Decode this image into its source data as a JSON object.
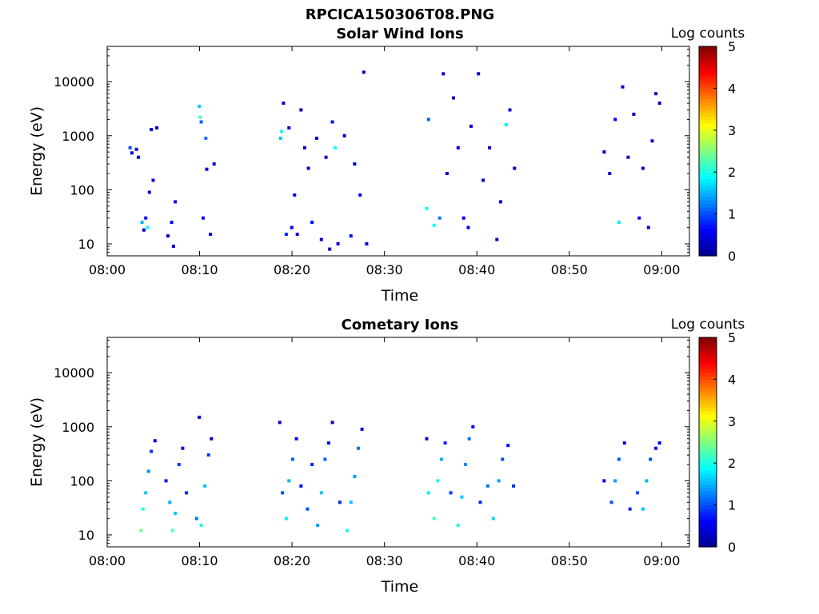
{
  "figure_title": "RPCICA150306T08.PNG",
  "colors": {
    "colormap": [
      "#00008f",
      "#0000ff",
      "#0080ff",
      "#00ffff",
      "#80ff80",
      "#ffff00",
      "#ff8000",
      "#ff0000",
      "#800000"
    ],
    "axes": "#000000",
    "background": "#ffffff"
  },
  "chart_data": [
    {
      "type": "heatmap",
      "title": "Solar Wind Ions",
      "xlabel": "Time",
      "ylabel": "Energy (eV)",
      "y_scale": "log",
      "x_ticks": [
        "08:00",
        "08:10",
        "08:20",
        "08:30",
        "08:40",
        "08:50",
        "09:00"
      ],
      "x_range_minutes_from_0800": [
        0,
        63
      ],
      "y_ticks": [
        "10",
        "100",
        "1000",
        "10000"
      ],
      "y_range_eV": [
        6,
        45000
      ],
      "colorbar": {
        "label": "Log counts",
        "ticks": [
          "0",
          "1",
          "2",
          "3",
          "4",
          "5"
        ],
        "range": [
          0,
          5
        ]
      },
      "activity_intervals": [
        [
          "08:02",
          "08:11"
        ],
        [
          "08:18",
          "08:28"
        ],
        [
          "08:34",
          "08:44"
        ],
        [
          "08:54",
          "09:00"
        ]
      ],
      "pixels": [
        [
          2.3,
          600,
          1.0
        ],
        [
          2.5,
          480,
          0.6
        ],
        [
          3.0,
          560,
          0.5
        ],
        [
          3.2,
          400,
          0.4
        ],
        [
          3.6,
          25,
          1.5
        ],
        [
          3.8,
          18,
          0.4
        ],
        [
          4.0,
          30,
          0.6
        ],
        [
          4.2,
          20,
          1.9
        ],
        [
          4.4,
          90,
          0.4
        ],
        [
          4.6,
          1300,
          0.3
        ],
        [
          4.8,
          150,
          0.4
        ],
        [
          5.2,
          1400,
          0.3
        ],
        [
          6.4,
          14,
          0.3
        ],
        [
          6.8,
          25,
          0.6
        ],
        [
          7.0,
          9,
          0.4
        ],
        [
          7.2,
          60,
          0.5
        ],
        [
          9.8,
          3500,
          1.6
        ],
        [
          9.9,
          2200,
          2.2
        ],
        [
          10.0,
          1800,
          1.1
        ],
        [
          10.2,
          30,
          0.6
        ],
        [
          10.5,
          900,
          1.2
        ],
        [
          10.6,
          240,
          0.4
        ],
        [
          11.0,
          15,
          0.5
        ],
        [
          11.4,
          300,
          0.5
        ],
        [
          18.6,
          900,
          1.6
        ],
        [
          18.7,
          1200,
          1.9
        ],
        [
          18.9,
          4000,
          0.4
        ],
        [
          19.2,
          15,
          0.8
        ],
        [
          19.5,
          1400,
          0.4
        ],
        [
          19.8,
          20,
          0.5
        ],
        [
          20.1,
          80,
          0.6
        ],
        [
          20.4,
          15,
          0.5
        ],
        [
          20.8,
          3000,
          0.3
        ],
        [
          21.2,
          600,
          0.4
        ],
        [
          21.6,
          250,
          0.4
        ],
        [
          22.0,
          25,
          0.6
        ],
        [
          22.5,
          900,
          0.5
        ],
        [
          23.0,
          12,
          0.4
        ],
        [
          23.5,
          400,
          0.4
        ],
        [
          23.9,
          8,
          0.3
        ],
        [
          24.2,
          1800,
          0.7
        ],
        [
          24.5,
          600,
          1.9
        ],
        [
          24.8,
          10,
          0.4
        ],
        [
          25.5,
          1000,
          0.4
        ],
        [
          26.2,
          14,
          0.7
        ],
        [
          26.6,
          300,
          0.4
        ],
        [
          27.2,
          80,
          0.5
        ],
        [
          27.6,
          15000,
          0.3
        ],
        [
          27.9,
          10,
          0.4
        ],
        [
          34.4,
          45,
          1.9
        ],
        [
          34.6,
          2000,
          1.1
        ],
        [
          35.2,
          22,
          1.9
        ],
        [
          35.8,
          30,
          1.2
        ],
        [
          36.2,
          14000,
          0.4
        ],
        [
          36.6,
          200,
          0.4
        ],
        [
          37.3,
          5000,
          0.3
        ],
        [
          37.8,
          600,
          0.4
        ],
        [
          38.4,
          30,
          0.6
        ],
        [
          38.9,
          20,
          0.5
        ],
        [
          39.2,
          1500,
          0.4
        ],
        [
          40.0,
          14000,
          0.3
        ],
        [
          40.5,
          150,
          0.4
        ],
        [
          41.2,
          600,
          0.4
        ],
        [
          42.0,
          12,
          0.4
        ],
        [
          42.4,
          60,
          0.6
        ],
        [
          43.0,
          1600,
          1.8
        ],
        [
          43.4,
          3000,
          0.4
        ],
        [
          43.9,
          250,
          0.4
        ],
        [
          53.6,
          500,
          0.4
        ],
        [
          54.2,
          200,
          0.4
        ],
        [
          54.8,
          2000,
          0.6
        ],
        [
          55.2,
          25,
          1.8
        ],
        [
          55.6,
          8000,
          0.4
        ],
        [
          56.2,
          400,
          0.4
        ],
        [
          56.8,
          2500,
          0.3
        ],
        [
          57.4,
          30,
          0.6
        ],
        [
          57.8,
          250,
          0.4
        ],
        [
          58.4,
          20,
          0.5
        ],
        [
          58.8,
          800,
          0.4
        ],
        [
          59.2,
          6000,
          0.3
        ],
        [
          59.6,
          4000,
          0.3
        ]
      ]
    },
    {
      "type": "heatmap",
      "title": "Cometary Ions",
      "xlabel": "Time",
      "ylabel": "Energy (eV)",
      "y_scale": "log",
      "x_ticks": [
        "08:00",
        "08:10",
        "08:20",
        "08:30",
        "08:40",
        "08:50",
        "09:00"
      ],
      "x_range_minutes_from_0800": [
        0,
        63
      ],
      "y_ticks": [
        "10",
        "100",
        "1000",
        "10000"
      ],
      "y_range_eV": [
        6,
        45000
      ],
      "colorbar": {
        "label": "Log counts",
        "ticks": [
          "0",
          "1",
          "2",
          "3",
          "4",
          "5"
        ],
        "range": [
          0,
          5
        ]
      },
      "activity_intervals": [
        [
          "08:03",
          "08:12"
        ],
        [
          "08:18",
          "08:28"
        ],
        [
          "08:35",
          "08:44"
        ],
        [
          "08:54",
          "09:00"
        ]
      ],
      "pixels": [
        [
          3.5,
          12,
          2.4
        ],
        [
          3.7,
          30,
          2.0
        ],
        [
          4.0,
          60,
          1.6
        ],
        [
          4.3,
          150,
          1.3
        ],
        [
          4.6,
          350,
          0.8
        ],
        [
          5.0,
          550,
          0.4
        ],
        [
          6.2,
          100,
          0.7
        ],
        [
          6.6,
          40,
          1.5
        ],
        [
          6.9,
          12,
          2.3
        ],
        [
          7.2,
          25,
          1.6
        ],
        [
          7.6,
          200,
          0.9
        ],
        [
          8.0,
          400,
          0.5
        ],
        [
          8.4,
          60,
          0.8
        ],
        [
          9.5,
          20,
          1.2
        ],
        [
          9.8,
          1500,
          0.4
        ],
        [
          10.0,
          15,
          1.9
        ],
        [
          10.4,
          80,
          1.6
        ],
        [
          10.8,
          300,
          0.9
        ],
        [
          11.1,
          600,
          0.4
        ],
        [
          18.5,
          1200,
          0.4
        ],
        [
          18.8,
          60,
          1.0
        ],
        [
          19.2,
          20,
          1.8
        ],
        [
          19.5,
          100,
          1.5
        ],
        [
          19.9,
          250,
          1.1
        ],
        [
          20.3,
          600,
          0.6
        ],
        [
          20.8,
          80,
          0.7
        ],
        [
          21.5,
          30,
          1.0
        ],
        [
          22.0,
          200,
          0.8
        ],
        [
          22.6,
          15,
          1.4
        ],
        [
          23.0,
          60,
          1.6
        ],
        [
          23.4,
          250,
          1.1
        ],
        [
          23.8,
          500,
          0.7
        ],
        [
          24.2,
          1200,
          0.4
        ],
        [
          25.0,
          40,
          0.8
        ],
        [
          25.8,
          12,
          1.9
        ],
        [
          26.2,
          40,
          1.6
        ],
        [
          26.6,
          120,
          1.4
        ],
        [
          27.0,
          400,
          1.2
        ],
        [
          27.4,
          900,
          0.6
        ],
        [
          34.4,
          600,
          0.4
        ],
        [
          34.6,
          60,
          1.8
        ],
        [
          35.2,
          20,
          2.2
        ],
        [
          35.6,
          100,
          1.9
        ],
        [
          36.0,
          250,
          1.5
        ],
        [
          36.4,
          500,
          0.8
        ],
        [
          37.0,
          60,
          0.9
        ],
        [
          37.8,
          15,
          2.0
        ],
        [
          38.2,
          50,
          1.6
        ],
        [
          38.6,
          200,
          1.3
        ],
        [
          39.0,
          600,
          1.2
        ],
        [
          39.4,
          1000,
          0.6
        ],
        [
          40.2,
          40,
          0.8
        ],
        [
          41.0,
          80,
          1.2
        ],
        [
          41.6,
          20,
          1.7
        ],
        [
          42.2,
          100,
          1.4
        ],
        [
          42.6,
          250,
          1.0
        ],
        [
          43.2,
          450,
          0.6
        ],
        [
          43.8,
          80,
          0.8
        ],
        [
          53.6,
          100,
          0.5
        ],
        [
          54.4,
          40,
          1.0
        ],
        [
          54.8,
          100,
          1.4
        ],
        [
          55.2,
          250,
          1.1
        ],
        [
          55.8,
          500,
          0.5
        ],
        [
          56.4,
          30,
          0.8
        ],
        [
          57.2,
          60,
          1.0
        ],
        [
          57.8,
          30,
          1.6
        ],
        [
          58.2,
          100,
          1.5
        ],
        [
          58.6,
          250,
          1.0
        ],
        [
          59.2,
          400,
          0.6
        ],
        [
          59.6,
          500,
          0.5
        ]
      ]
    }
  ]
}
